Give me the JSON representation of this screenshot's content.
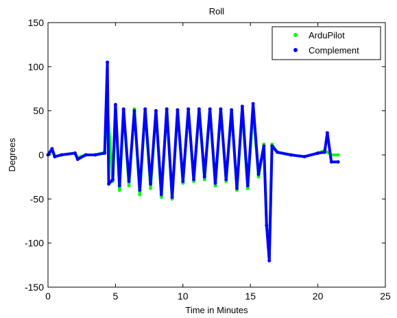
{
  "chart_data": {
    "type": "scatter",
    "title": "Roll",
    "xlabel": "Time in Minutes",
    "ylabel": "Degrees",
    "xlim": [
      0,
      25
    ],
    "ylim": [
      -150,
      150
    ],
    "xticks": [
      0,
      5,
      10,
      15,
      20,
      25
    ],
    "yticks": [
      -150,
      -100,
      -50,
      0,
      50,
      100,
      150
    ],
    "grid": false,
    "legend_position": "top-right",
    "series": [
      {
        "name": "ArduPilot",
        "color": "#00ff00",
        "x": [
          0,
          0.3,
          0.5,
          1.0,
          2.0,
          2.2,
          2.8,
          3.5,
          4.2,
          4.4,
          4.8,
          5.0,
          5.3,
          5.6,
          6.0,
          6.4,
          6.8,
          7.2,
          7.6,
          8.0,
          8.4,
          8.8,
          9.2,
          9.6,
          10.0,
          10.4,
          10.8,
          11.2,
          11.6,
          12.0,
          12.4,
          12.8,
          13.2,
          13.6,
          14.0,
          14.4,
          14.8,
          15.2,
          15.6,
          16.0,
          16.2,
          16.4,
          16.6,
          17.0,
          18.0,
          19.0,
          20.0,
          20.5,
          21.0,
          21.5
        ],
        "y": [
          0,
          5,
          -2,
          0,
          2,
          -3,
          0,
          0,
          3,
          55,
          -30,
          52,
          -40,
          50,
          -35,
          52,
          -45,
          52,
          -38,
          50,
          -48,
          52,
          -50,
          51,
          -32,
          52,
          -30,
          52,
          -28,
          52,
          -35,
          52,
          -30,
          51,
          -40,
          52,
          -38,
          52,
          -25,
          12,
          -80,
          -115,
          12,
          3,
          0,
          -2,
          2,
          5,
          0,
          0
        ]
      },
      {
        "name": "Complement",
        "color": "#0000ff",
        "x": [
          0,
          0.3,
          0.5,
          1.0,
          2.0,
          2.2,
          2.8,
          3.5,
          4.2,
          4.4,
          4.5,
          4.8,
          5.0,
          5.3,
          5.6,
          6.0,
          6.4,
          6.8,
          7.2,
          7.6,
          8.0,
          8.4,
          8.8,
          9.2,
          9.6,
          10.0,
          10.4,
          10.8,
          11.2,
          11.6,
          12.0,
          12.4,
          12.8,
          13.2,
          13.6,
          14.0,
          14.4,
          14.8,
          15.2,
          15.6,
          16.0,
          16.2,
          16.4,
          16.6,
          17.0,
          18.0,
          19.0,
          20.0,
          20.5,
          20.7,
          21.0,
          21.5
        ],
        "y": [
          0,
          7,
          -2,
          0,
          2,
          -5,
          0,
          0,
          2,
          105,
          -33,
          -28,
          57,
          -35,
          52,
          -30,
          50,
          -40,
          52,
          -33,
          50,
          -45,
          52,
          -48,
          51,
          -30,
          52,
          -28,
          52,
          -25,
          52,
          -32,
          52,
          -28,
          51,
          -38,
          55,
          -35,
          58,
          -22,
          10,
          -80,
          -120,
          10,
          3,
          0,
          -2,
          2,
          3,
          25,
          -8,
          -8
        ]
      }
    ]
  }
}
